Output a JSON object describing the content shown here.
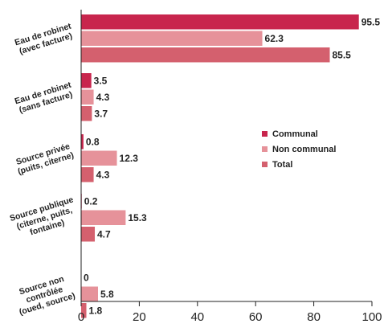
{
  "chart_data": {
    "type": "bar",
    "orientation": "horizontal",
    "categories": [
      [
        "Eau de robinet",
        "(avec facture)"
      ],
      [
        "Eau de robinet",
        "(sans facture)"
      ],
      [
        "Source privée",
        "(puits, citerne)"
      ],
      [
        "Source publique",
        "(citerne, puits,",
        "fontaine)"
      ],
      [
        "Source non",
        "contrôlée",
        "(oued, source)"
      ]
    ],
    "series": [
      {
        "name": "Communal",
        "color": "#c8254d",
        "values": [
          95.5,
          3.5,
          0.8,
          0.2,
          0
        ]
      },
      {
        "name": "Non communal",
        "color": "#e6929a",
        "values": [
          62.3,
          4.3,
          12.3,
          15.3,
          5.8
        ]
      },
      {
        "name": "Total",
        "color": "#d4606e",
        "values": [
          85.5,
          3.7,
          4.3,
          4.7,
          1.8
        ]
      }
    ],
    "value_labels": [
      [
        "95.5",
        "62.3",
        "85.5"
      ],
      [
        "3.5",
        "4.3",
        "3.7"
      ],
      [
        "0.8",
        "12.3",
        "4.3"
      ],
      [
        "0.2",
        "15.3",
        "4.7"
      ],
      [
        "0",
        "5.8",
        "1.8"
      ]
    ],
    "xticks": [
      "0",
      "20",
      "40",
      "60",
      "80",
      "100"
    ],
    "xlim": [
      0,
      100
    ],
    "legend_position": "right",
    "grid": false
  }
}
